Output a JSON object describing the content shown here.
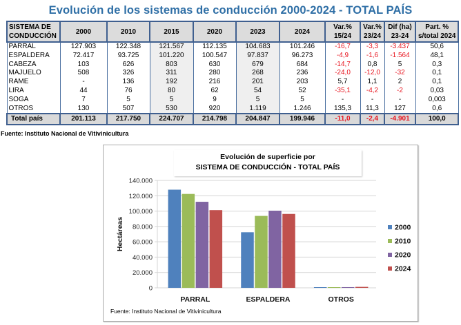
{
  "title": "Evolución de los sistemas de conducción 2000-2024 - TOTAL PAÍS",
  "table": {
    "headers": [
      [
        "SISTEMA DE",
        "CONDUCCIÓN"
      ],
      [
        "2000"
      ],
      [
        "2010"
      ],
      [
        "2015"
      ],
      [
        "2020"
      ],
      [
        "2023"
      ],
      [
        "2024"
      ],
      [
        "Var.%",
        "15/24"
      ],
      [
        "Var.%",
        "23/24"
      ],
      [
        "Dif (ha)",
        "23-24"
      ],
      [
        "Part. %",
        "s/total 2024"
      ]
    ],
    "rows": [
      [
        "PARRAL",
        "127.903",
        "122.348",
        "121.567",
        "112.135",
        "104.683",
        "101.246",
        "-16,7",
        "-3,3",
        "-3.437",
        "50,6"
      ],
      [
        "ESPALDERA",
        "72.417",
        "93.725",
        "101.220",
        "100.547",
        "97.837",
        "96.273",
        "-4,9",
        "-1,6",
        "-1.564",
        "48,1"
      ],
      [
        "CABEZA",
        "103",
        "626",
        "803",
        "630",
        "679",
        "684",
        "-14,7",
        "0,8",
        "5",
        "0,3"
      ],
      [
        "MAJUELO",
        "508",
        "326",
        "311",
        "280",
        "268",
        "236",
        "-24,0",
        "-12,0",
        "-32",
        "0,1"
      ],
      [
        "RAME",
        "-",
        "136",
        "192",
        "216",
        "201",
        "203",
        "5,7",
        "1,1",
        "2",
        "0,1"
      ],
      [
        "LIRA",
        "44",
        "76",
        "80",
        "62",
        "54",
        "52",
        "-35,1",
        "-4,2",
        "-2",
        "0,03"
      ],
      [
        "SOGA",
        "7",
        "5",
        "5",
        "9",
        "5",
        "5",
        "-",
        "-",
        "-",
        "0,003"
      ],
      [
        "OTROS",
        "130",
        "507",
        "530",
        "920",
        "1.119",
        "1.246",
        "135,3",
        "11,3",
        "127",
        "0,6"
      ]
    ],
    "total": [
      "Total país",
      "201.113",
      "217.750",
      "224.707",
      "214.798",
      "204.847",
      "199.946",
      "-11,0",
      "-2,4",
      "-4.901",
      "100,0"
    ]
  },
  "source_table": "Fuente: Instituto Nacional de Vitivinicultura",
  "colors": {
    "title": "#2f6fa6",
    "negative": "#e8141e",
    "series_2000": "#4f81bd",
    "series_2010": "#9bbb59",
    "series_2020": "#8064a2",
    "series_2024": "#c0504d"
  },
  "chart_data": {
    "type": "bar",
    "title": "Evolución de superficie por",
    "subtitle": "SISTEMA DE CONDUCCIÓN - TOTAL PAÍS",
    "categories": [
      "PARRAL",
      "ESPALDERA",
      "OTROS"
    ],
    "series": [
      {
        "name": "2000",
        "values": [
          127903,
          72417,
          130
        ]
      },
      {
        "name": "2010",
        "values": [
          122348,
          93725,
          507
        ]
      },
      {
        "name": "2020",
        "values": [
          112135,
          100547,
          920
        ]
      },
      {
        "name": "2024",
        "values": [
          101246,
          96273,
          1246
        ]
      }
    ],
    "xlabel": "",
    "ylabel": "Hectáreas",
    "ylim": [
      0,
      140000
    ],
    "yticks": [
      0,
      20000,
      40000,
      60000,
      80000,
      100000,
      120000,
      140000
    ],
    "ytick_labels": [
      "0",
      "20.000",
      "40.000",
      "60.000",
      "80.000",
      "100.000",
      "120.000",
      "140.000"
    ],
    "grid": true,
    "legend": "right",
    "source": "Fuente: Instituto Nacional de Vitivinicultura"
  }
}
